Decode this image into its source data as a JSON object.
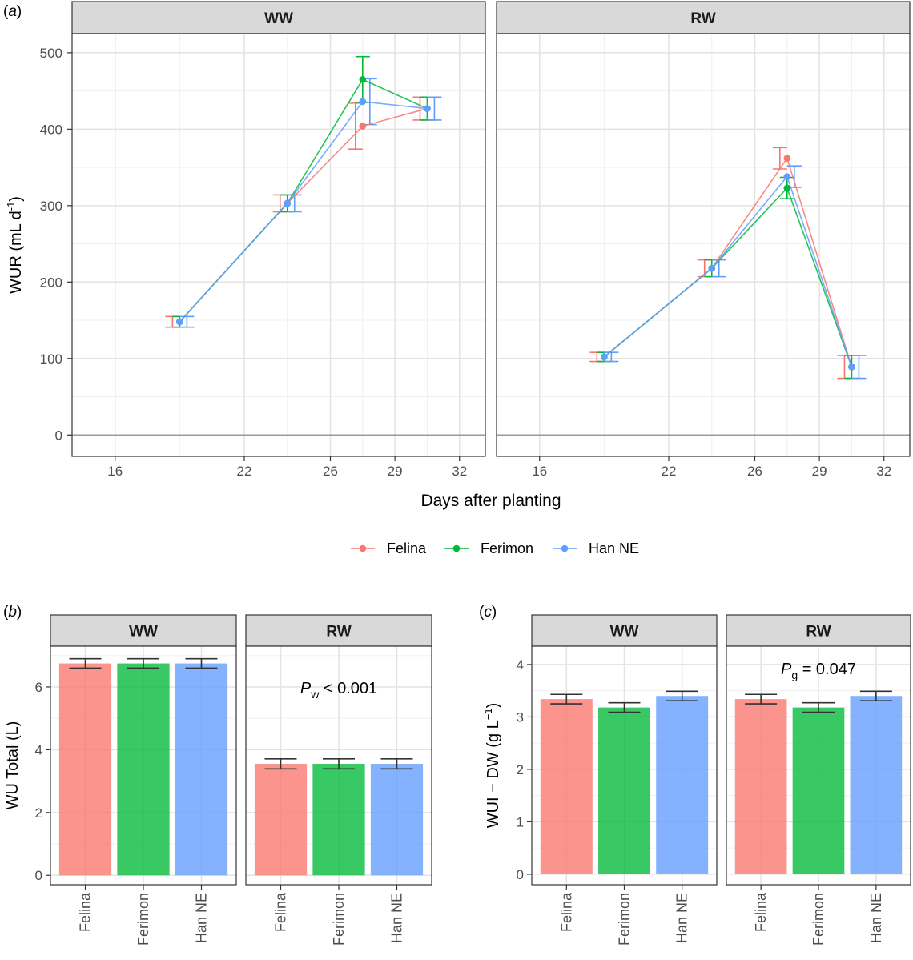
{
  "panel_labels": {
    "a": "a",
    "b": "b",
    "c": "c"
  },
  "legend": [
    {
      "name": "Felina",
      "color": "#F8766D"
    },
    {
      "name": "Ferimon",
      "color": "#00BA38"
    },
    {
      "name": "Han NE",
      "color": "#619CFF"
    }
  ],
  "chart_data": [
    {
      "id": "a",
      "type": "line",
      "ylabel": "WUR (mL d⁻¹)",
      "ylabel_main": "WUR",
      "ylabel_unit": "mL d",
      "ylabel_sup": "-1",
      "xlabel": "Days after planting",
      "xticks": [
        16,
        22,
        26,
        29,
        32
      ],
      "xlim": [
        14,
        33.2
      ],
      "ylim": [
        -28,
        525
      ],
      "yticks": [
        0,
        100,
        200,
        300,
        400,
        500
      ],
      "facets": [
        {
          "name": "WW",
          "series": [
            {
              "name": "Felina",
              "x": [
                19.0,
                24.0,
                27.5,
                30.5
              ],
              "y": [
                148,
                303,
                404,
                427
              ],
              "err": [
                7,
                11,
                30,
                15
              ]
            },
            {
              "name": "Ferimon",
              "x": [
                19.0,
                24.0,
                27.5,
                30.5
              ],
              "y": [
                148,
                303,
                465,
                427
              ],
              "err": [
                7,
                11,
                30,
                15
              ]
            },
            {
              "name": "Han NE",
              "x": [
                19.0,
                24.0,
                27.5,
                30.5
              ],
              "y": [
                148,
                303,
                436,
                427
              ],
              "err": [
                7,
                11,
                30,
                15
              ]
            }
          ]
        },
        {
          "name": "RW",
          "series": [
            {
              "name": "Felina",
              "x": [
                19.0,
                24.0,
                27.5,
                30.5
              ],
              "y": [
                102,
                218,
                362,
                89
              ],
              "err": [
                6,
                11,
                14,
                15
              ]
            },
            {
              "name": "Ferimon",
              "x": [
                19.0,
                24.0,
                27.5,
                30.5
              ],
              "y": [
                102,
                218,
                323,
                89
              ],
              "err": [
                6,
                11,
                14,
                15
              ]
            },
            {
              "name": "Han NE",
              "x": [
                19.0,
                24.0,
                27.5,
                30.5
              ],
              "y": [
                102,
                218,
                338,
                89
              ],
              "err": [
                6,
                11,
                14,
                15
              ]
            }
          ]
        }
      ]
    },
    {
      "id": "b",
      "type": "bar",
      "ylabel": "WU Total (L)",
      "categories": [
        "Felina",
        "Ferimon",
        "Han NE"
      ],
      "ylim": [
        -0.3,
        7.3
      ],
      "yticks": [
        0,
        2,
        4,
        6
      ],
      "facets": [
        {
          "name": "WW",
          "values": [
            6.75,
            6.75,
            6.75
          ],
          "err": [
            0.15,
            0.15,
            0.15
          ]
        },
        {
          "name": "RW",
          "values": [
            3.55,
            3.55,
            3.55
          ],
          "err": [
            0.16,
            0.16,
            0.16
          ],
          "annotation": {
            "label": "P",
            "sub": "w",
            "text": " < 0.001"
          }
        }
      ]
    },
    {
      "id": "c",
      "type": "bar",
      "ylabel": "WUI − DW (g L⁻¹)",
      "ylabel_main": "WUI − DW",
      "ylabel_unit": "g L",
      "ylabel_sup": "−1",
      "categories": [
        "Felina",
        "Ferimon",
        "Han NE"
      ],
      "ylim": [
        -0.2,
        4.35
      ],
      "yticks": [
        0,
        1,
        2,
        3,
        4
      ],
      "facets": [
        {
          "name": "WW",
          "values": [
            3.34,
            3.18,
            3.4
          ],
          "err": [
            0.09,
            0.09,
            0.09
          ]
        },
        {
          "name": "RW",
          "values": [
            3.34,
            3.18,
            3.4
          ],
          "err": [
            0.09,
            0.09,
            0.09
          ],
          "annotation": {
            "label": "P",
            "sub": "g",
            "text": " = 0.047"
          }
        }
      ]
    }
  ]
}
